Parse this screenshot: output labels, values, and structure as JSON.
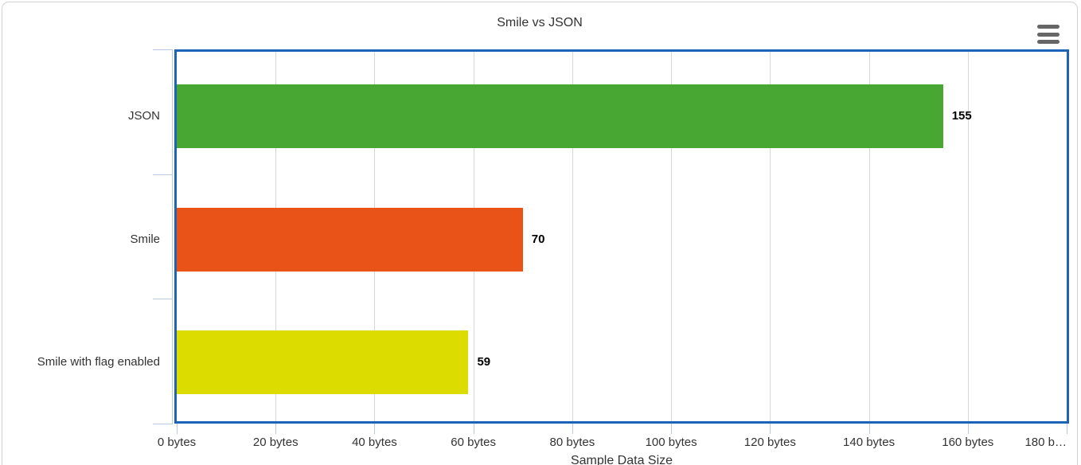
{
  "chart_data": {
    "type": "bar",
    "orientation": "horizontal",
    "title": "Smile vs JSON",
    "categories": [
      "JSON",
      "Smile",
      "Smile with flag enabled"
    ],
    "values": [
      155,
      70,
      59
    ],
    "data_labels": [
      "155",
      "70",
      "59"
    ],
    "bar_colors": [
      "#48a632",
      "#e95318",
      "#dcdc00"
    ],
    "xlabel": "Sample Data Size",
    "ylabel": "",
    "xlim": [
      0,
      180
    ],
    "x_tick_values": [
      0,
      20,
      40,
      60,
      80,
      100,
      120,
      140,
      160,
      180
    ],
    "x_tick_labels": [
      "0 bytes",
      "20 bytes",
      "40 bytes",
      "60 bytes",
      "80 bytes",
      "100 bytes",
      "120 bytes",
      "140 bytes",
      "160 bytes",
      "180 b…"
    ],
    "grid": true,
    "legend_position": "none"
  },
  "icons": {
    "menu": "hamburger-icon"
  },
  "colors": {
    "plot_border": "#1b64b8",
    "axis_line": "#b9c9e0",
    "gridline": "#d6d6d6",
    "text": "#333333",
    "data_label": "#000000",
    "menu_icon": "#666666",
    "card_border": "#d2d2d2",
    "background": "#ffffff"
  }
}
